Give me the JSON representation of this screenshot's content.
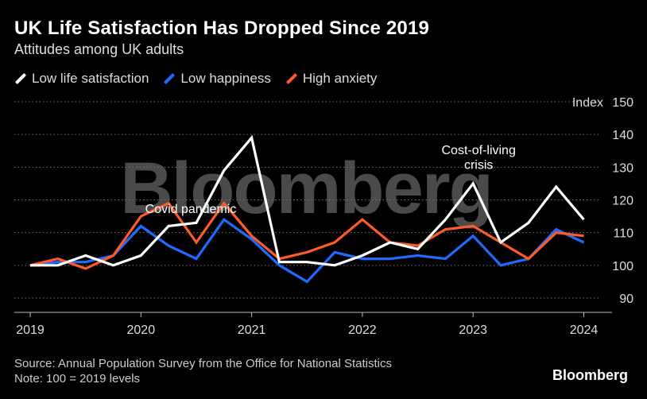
{
  "header": {
    "title": "UK Life Satisfaction Has Dropped Since 2019",
    "subtitle": "Attitudes among UK adults"
  },
  "legend": [
    {
      "label": "Low life satisfaction",
      "color": "#ffffff"
    },
    {
      "label": "Low happiness",
      "color": "#1f6bff"
    },
    {
      "label": "High anxiety",
      "color": "#ff5a2a"
    }
  ],
  "footer": {
    "source": "Source: Annual Population Survey from the Office for National Statistics",
    "note": "Note: 100 = 2019 levels",
    "brand": "Bloomberg"
  },
  "watermark": "Bloomberg",
  "chart_data": {
    "type": "line",
    "title": "UK Life Satisfaction Has Dropped Since 2019",
    "subtitle": "Attitudes among UK adults",
    "ylabel": "Index",
    "ylim": [
      90,
      150
    ],
    "yticks": [
      90,
      100,
      110,
      120,
      130,
      140,
      150
    ],
    "xlim": [
      2019.0,
      2024.3
    ],
    "xticks": [
      2019,
      2020,
      2021,
      2022,
      2023,
      2024
    ],
    "grid": true,
    "legend_position": "top-left",
    "series": [
      {
        "name": "Low life satisfaction",
        "color": "#ffffff",
        "x": [
          2019.0,
          2019.25,
          2019.5,
          2019.75,
          2020.0,
          2020.25,
          2020.5,
          2020.75,
          2021.0,
          2021.25,
          2021.5,
          2021.75,
          2022.0,
          2022.25,
          2022.5,
          2022.75,
          2023.0,
          2023.25,
          2023.5,
          2023.75,
          2024.0
        ],
        "values": [
          100,
          100,
          103,
          100,
          103,
          112,
          113,
          129,
          139,
          101,
          101,
          100,
          103,
          107,
          105,
          114,
          125,
          107,
          113,
          124,
          114
        ]
      },
      {
        "name": "Low happiness",
        "color": "#1f6bff",
        "x": [
          2019.0,
          2019.25,
          2019.5,
          2019.75,
          2020.0,
          2020.25,
          2020.5,
          2020.75,
          2021.0,
          2021.25,
          2021.5,
          2021.75,
          2022.0,
          2022.25,
          2022.5,
          2022.75,
          2023.0,
          2023.25,
          2023.5,
          2023.75,
          2024.0
        ],
        "values": [
          100,
          101,
          101,
          103,
          112,
          106,
          102,
          114,
          108,
          100,
          95,
          104,
          102,
          102,
          103,
          102,
          109,
          100,
          102,
          111,
          107
        ]
      },
      {
        "name": "High anxiety",
        "color": "#ff5a2a",
        "x": [
          2019.0,
          2019.25,
          2019.5,
          2019.75,
          2020.0,
          2020.25,
          2020.5,
          2020.75,
          2021.0,
          2021.25,
          2021.5,
          2021.75,
          2022.0,
          2022.25,
          2022.5,
          2022.75,
          2023.0,
          2023.25,
          2023.5,
          2023.75,
          2024.0
        ],
        "values": [
          100,
          102,
          99,
          103,
          115,
          119,
          107,
          119,
          109,
          102,
          104,
          107,
          114,
          107,
          106,
          111,
          112,
          107,
          102,
          110,
          109
        ]
      }
    ],
    "annotations": [
      {
        "text": "Covid pandemic",
        "x": 2020.45,
        "y": 116
      },
      {
        "text": "Cost-of-living",
        "x": 2023.05,
        "y": 134
      },
      {
        "text": "crisis",
        "x": 2023.05,
        "y": 129.5
      }
    ]
  }
}
